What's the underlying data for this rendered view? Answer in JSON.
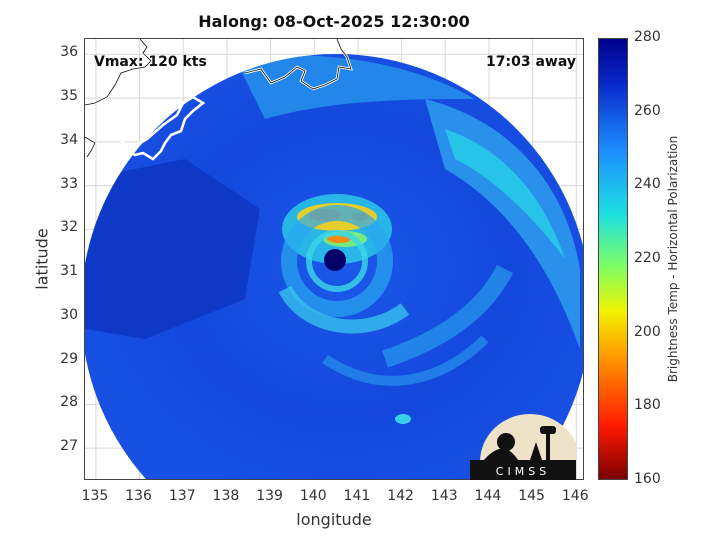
{
  "title": "Halong: 08-Oct-2025 12:30:00",
  "annotations": {
    "vmax": "Vmax: 120 kts",
    "away": "17:03 away"
  },
  "axes": {
    "xlabel": "longitude",
    "ylabel": "latitude",
    "xticks": [
      "135",
      "136",
      "137",
      "138",
      "139",
      "140",
      "141",
      "142",
      "143",
      "144",
      "145",
      "146"
    ],
    "yticks": [
      "36",
      "35",
      "34",
      "33",
      "32",
      "31",
      "30",
      "29",
      "28",
      "27"
    ],
    "xlim": [
      134.75,
      146.2
    ],
    "ylim": [
      26.25,
      36.35
    ],
    "grid": true
  },
  "colorbar": {
    "label": "Brightness Temp - Horizontal Polarization",
    "ticks": [
      "280",
      "260",
      "240",
      "220",
      "200",
      "180",
      "160"
    ],
    "range": [
      160,
      280
    ],
    "colormap": "jet"
  },
  "storm": {
    "name": "Halong",
    "eye_lon": 140.4,
    "eye_lat": 31.3,
    "vmax_kts": 120
  },
  "logo": {
    "text": "CIMSS"
  },
  "colors": {
    "eye": "#000066",
    "background_field": "#1040d8",
    "warm_band": "#f0c020",
    "coast": "#ffffff"
  }
}
